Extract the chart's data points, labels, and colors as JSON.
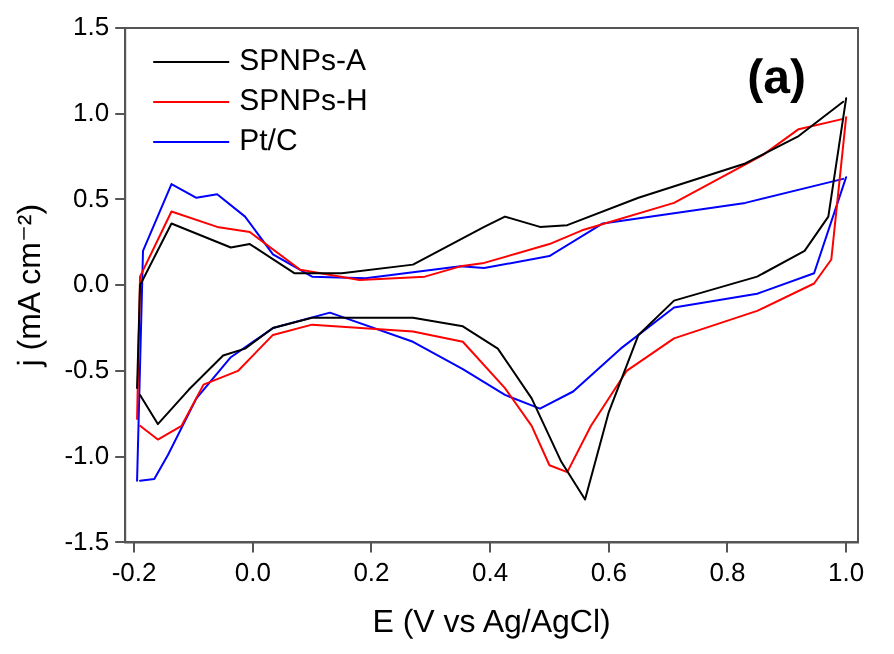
{
  "chart_data": {
    "type": "line",
    "xlabel": "E (V vs Ag/AgCl)",
    "ylabel": "j (mA cm⁻²)",
    "annotations": [
      "(a)"
    ],
    "xlim": [
      -0.215,
      1.02
    ],
    "ylim": [
      -1.5,
      1.5
    ],
    "xticks": [
      {
        "value": -0.2,
        "label": "-0.2"
      },
      {
        "value": 0,
        "label": "0.0"
      },
      {
        "value": 0.2,
        "label": "0.2"
      },
      {
        "value": 0.4,
        "label": "0.4"
      },
      {
        "value": 0.6,
        "label": "0.6"
      },
      {
        "value": 0.8,
        "label": "0.8"
      },
      {
        "value": 1,
        "label": "1.0"
      }
    ],
    "yticks": [
      {
        "value": -1.5,
        "label": "-1.5"
      },
      {
        "value": -1,
        "label": "-1.0"
      },
      {
        "value": -0.5,
        "label": "-0.5"
      },
      {
        "value": 0,
        "label": "0.0"
      },
      {
        "value": 0.5,
        "label": "0.5"
      },
      {
        "value": 1,
        "label": "1.0"
      },
      {
        "value": 1.5,
        "label": "1.5"
      }
    ],
    "grid": false,
    "legend": "top left",
    "marker": "none",
    "line_style": "solid",
    "series": [
      {
        "name": "SPNPs-A",
        "color": "#000000",
        "x": [
          -0.195,
          -0.19,
          -0.137,
          -0.037,
          -0.005,
          0.07,
          0.15,
          0.27,
          0.39,
          0.425,
          0.484,
          0.53,
          0.65,
          0.83,
          0.92,
          0.995
        ],
        "values": [
          -0.6,
          0,
          0.36,
          0.22,
          0.24,
          0.07,
          0.07,
          0.12,
          0.34,
          0.4,
          0.34,
          0.35,
          0.51,
          0.71,
          0.87,
          1.07
        ]
      },
      {
        "color": "#000000",
        "x": [
          -0.19,
          -0.16,
          -0.108,
          -0.05,
          -0.013,
          0.034,
          0.1,
          0.27,
          0.354,
          0.413,
          0.47,
          0.52,
          0.56,
          0.6,
          0.65,
          0.71,
          0.85,
          0.93,
          0.97,
          1.0
        ],
        "values": [
          -0.64,
          -0.81,
          -0.61,
          -0.41,
          -0.37,
          -0.25,
          -0.19,
          -0.19,
          -0.24,
          -0.37,
          -0.66,
          -1.03,
          -1.25,
          -0.74,
          -0.29,
          -0.09,
          0.05,
          0.2,
          0.4,
          1.09
        ]
      },
      {
        "name": "SPNPs-H",
        "color": "#ff0000",
        "x": [
          -0.195,
          -0.19,
          -0.137,
          -0.06,
          -0.005,
          0.08,
          0.18,
          0.29,
          0.35,
          0.39,
          0.5,
          0.555,
          0.71,
          0.86,
          0.92,
          0.995
        ],
        "values": [
          -0.78,
          0.05,
          0.43,
          0.34,
          0.31,
          0.09,
          0.03,
          0.05,
          0.11,
          0.13,
          0.24,
          0.32,
          0.48,
          0.76,
          0.91,
          0.97
        ]
      },
      {
        "color": "#ff0000",
        "x": [
          -0.19,
          -0.16,
          -0.12,
          -0.083,
          -0.025,
          0.034,
          0.1,
          0.27,
          0.354,
          0.425,
          0.47,
          0.5,
          0.53,
          0.57,
          0.63,
          0.71,
          0.85,
          0.946,
          0.975,
          1.0
        ],
        "values": [
          -0.82,
          -0.9,
          -0.82,
          -0.58,
          -0.5,
          -0.29,
          -0.23,
          -0.27,
          -0.33,
          -0.6,
          -0.82,
          -1.05,
          -1.09,
          -0.82,
          -0.5,
          -0.31,
          -0.15,
          0.01,
          0.15,
          0.98
        ]
      },
      {
        "name": "Pt/C",
        "color": "#0000ff",
        "x": [
          -0.195,
          -0.185,
          -0.137,
          -0.095,
          -0.06,
          -0.013,
          0.034,
          0.1,
          0.19,
          0.35,
          0.39,
          0.5,
          0.59,
          0.83,
          0.995
        ],
        "values": [
          -1.14,
          0.2,
          0.59,
          0.51,
          0.53,
          0.4,
          0.18,
          0.05,
          0.04,
          0.11,
          0.1,
          0.17,
          0.36,
          0.48,
          0.62
        ]
      },
      {
        "color": "#0000ff",
        "x": [
          -0.19,
          -0.166,
          -0.143,
          -0.095,
          -0.037,
          0.034,
          0.13,
          0.27,
          0.354,
          0.425,
          0.484,
          0.54,
          0.62,
          0.71,
          0.85,
          0.946,
          1.0
        ],
        "values": [
          -1.14,
          -1.13,
          -0.99,
          -0.66,
          -0.42,
          -0.25,
          -0.16,
          -0.33,
          -0.49,
          -0.64,
          -0.72,
          -0.62,
          -0.37,
          -0.13,
          -0.05,
          0.07,
          0.63
        ]
      }
    ]
  }
}
